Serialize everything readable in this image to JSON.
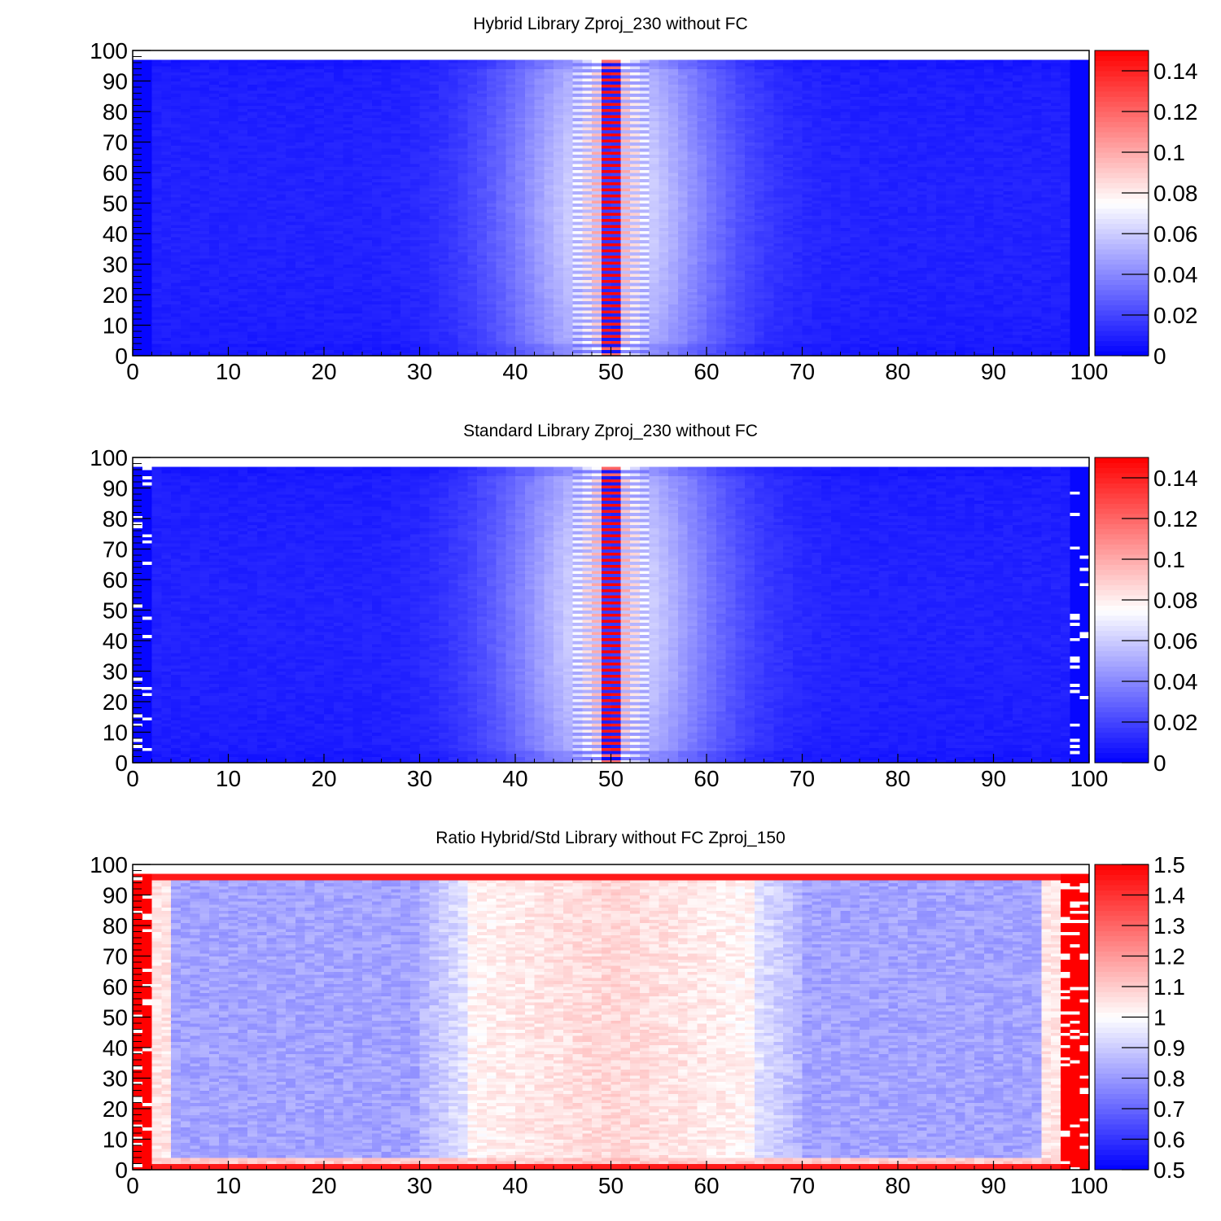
{
  "chart_data": [
    {
      "type": "heatmap",
      "title": "Hybrid Library Zproj_230 without FC",
      "xlim": [
        0,
        100
      ],
      "ylim": [
        0,
        100
      ],
      "x_ticks": [
        "0",
        "10",
        "20",
        "30",
        "40",
        "50",
        "60",
        "70",
        "80",
        "90",
        "100"
      ],
      "y_ticks": [
        "0",
        "10",
        "20",
        "30",
        "40",
        "50",
        "60",
        "70",
        "80",
        "90",
        "100"
      ],
      "z_range": [
        0,
        0.15
      ],
      "z_ticks": [
        "0",
        "0.02",
        "0.04",
        "0.06",
        "0.08",
        "0.1",
        "0.12",
        "0.14"
      ],
      "z_tick_values": [
        0,
        0.02,
        0.04,
        0.06,
        0.08,
        0.1,
        0.12,
        0.14
      ],
      "colormap": [
        "#0000ff",
        "#ffffff",
        "#ff0000"
      ],
      "description_of_values": {
        "background": 0.01,
        "center_x": 50,
        "central_peak_max": 0.15,
        "stripes_near_x": 50,
        "edge_columns_x": [
          0,
          2,
          98,
          100
        ]
      }
    },
    {
      "type": "heatmap",
      "title": "Standard Library Zproj_230 without FC",
      "xlim": [
        0,
        100
      ],
      "ylim": [
        0,
        100
      ],
      "x_ticks": [
        "0",
        "10",
        "20",
        "30",
        "40",
        "50",
        "60",
        "70",
        "80",
        "90",
        "100"
      ],
      "y_ticks": [
        "0",
        "10",
        "20",
        "30",
        "40",
        "50",
        "60",
        "70",
        "80",
        "90",
        "100"
      ],
      "z_range": [
        0,
        0.15
      ],
      "z_ticks": [
        "0",
        "0.02",
        "0.04",
        "0.06",
        "0.08",
        "0.1",
        "0.12",
        "0.14"
      ],
      "z_tick_values": [
        0,
        0.02,
        0.04,
        0.06,
        0.08,
        0.1,
        0.12,
        0.14
      ],
      "colormap": [
        "#0000ff",
        "#ffffff",
        "#ff0000"
      ],
      "description_of_values": {
        "background": 0.01,
        "center_x": 50,
        "central_peak_max": 0.15,
        "stripes_near_x": 50,
        "filled_y_max": 97
      }
    },
    {
      "type": "heatmap",
      "title": "Ratio Hybrid/Std Library without FC Zproj_150",
      "xlim": [
        0,
        100
      ],
      "ylim": [
        0,
        100
      ],
      "x_ticks": [
        "0",
        "10",
        "20",
        "30",
        "40",
        "50",
        "60",
        "70",
        "80",
        "90",
        "100"
      ],
      "y_ticks": [
        "0",
        "10",
        "20",
        "30",
        "40",
        "50",
        "60",
        "70",
        "80",
        "90",
        "100"
      ],
      "z_range": [
        0.5,
        1.5
      ],
      "z_ticks": [
        "0.5",
        "0.6",
        "0.7",
        "0.8",
        "0.9",
        "1",
        "1.1",
        "1.2",
        "1.3",
        "1.4",
        "1.5"
      ],
      "z_tick_values": [
        0.5,
        0.6,
        0.7,
        0.8,
        0.9,
        1.0,
        1.1,
        1.2,
        1.3,
        1.4,
        1.5
      ],
      "colormap": [
        "#0000ff",
        "#ffffff",
        "#ff0000"
      ],
      "description_of_values": {
        "outer_region_ratio": 0.8,
        "central_region_ratio": 1.05,
        "central_region_x": [
          30,
          70
        ],
        "edge_ratio": 1.5,
        "filled_y_max": 97
      }
    }
  ]
}
